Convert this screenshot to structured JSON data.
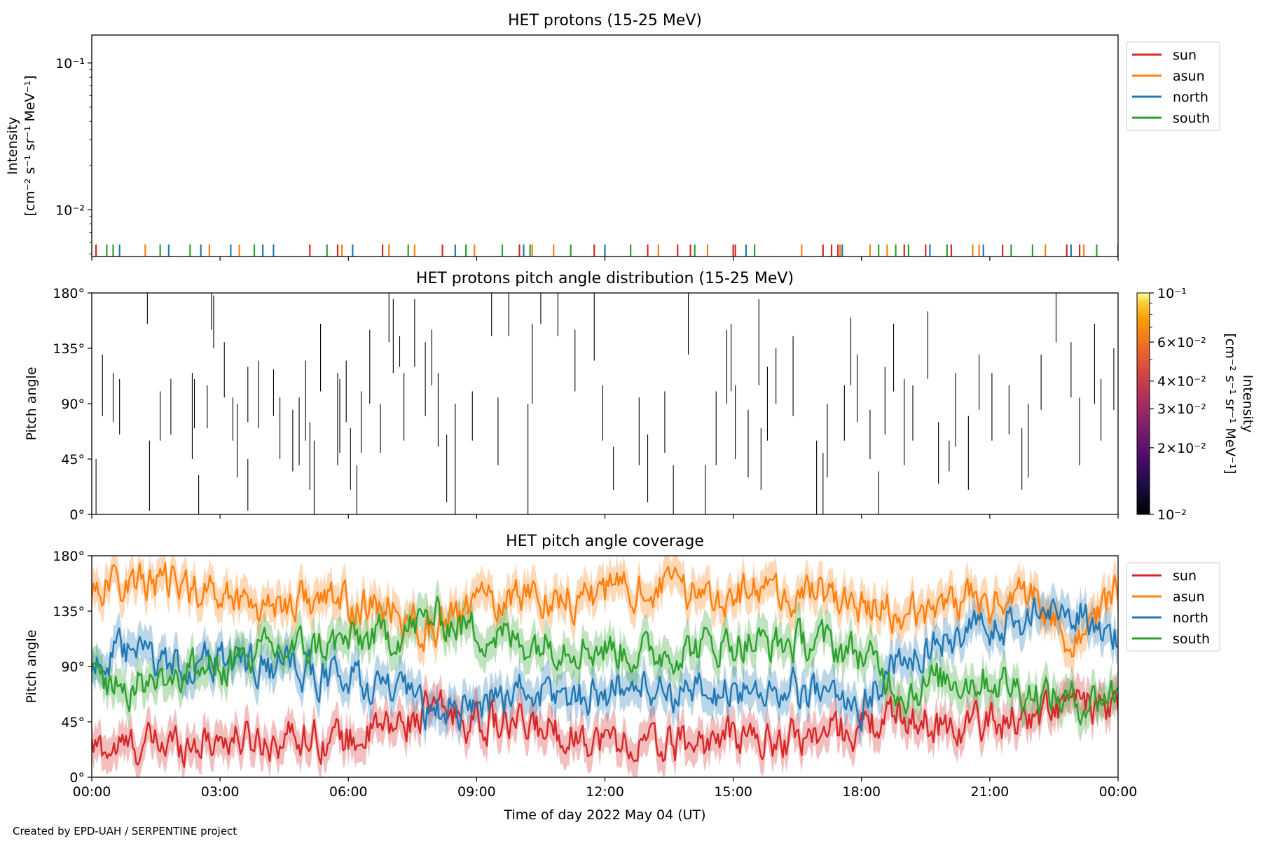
{
  "figure": {
    "credit": "Created by EPD-UAH / SERPENTINE project",
    "xlabel": "Time of day 2022 May 04 (UT)"
  },
  "colors": {
    "sun": "#d62728",
    "asun": "#ff7f0e",
    "north": "#1f77b4",
    "south": "#2ca02c"
  },
  "chart_data": [
    {
      "type": "line",
      "title": "HET protons (15-25 MeV)",
      "ylabel_lines": [
        "Intensity",
        "[cm⁻² s⁻¹ sr⁻¹ MeV⁻¹]"
      ],
      "yscale": "log",
      "ylim": [
        0.0048,
        0.155
      ],
      "yticks": [
        {
          "value": 0.1,
          "label": "10⁻¹"
        },
        {
          "value": 0.01,
          "label": "10⁻²"
        }
      ],
      "xlim_hours": [
        0,
        24
      ],
      "xtick_labels": [
        "00:00",
        "03:00",
        "06:00",
        "09:00",
        "12:00",
        "15:00",
        "18:00",
        "21:00",
        "00:00"
      ],
      "legend": {
        "placement": "outside-right",
        "entries": [
          "sun",
          "asun",
          "north",
          "south"
        ]
      },
      "series": [
        {
          "name": "sun",
          "color": "#d62728",
          "value": 0.0058,
          "times_hours": [
            0.1,
            5.1,
            5.75,
            6.8,
            8.2,
            10.0,
            11.75,
            13.0,
            13.7,
            14.0,
            15.0,
            15.05,
            17.1,
            17.3,
            17.45,
            19.0,
            19.5,
            20.1,
            21.3,
            22.8,
            23.1
          ]
        },
        {
          "name": "asun",
          "color": "#ff7f0e",
          "value": 0.0058,
          "times_hours": [
            1.25,
            2.75,
            3.45,
            5.85,
            6.95,
            7.55,
            8.95,
            10.3,
            10.8,
            13.25,
            14.4,
            16.6,
            17.5,
            18.2,
            18.6,
            20.6,
            20.75,
            22.3,
            23.2
          ]
        },
        {
          "name": "north",
          "color": "#1f77b4",
          "value": 0.0058,
          "times_hours": [
            0.65,
            1.8,
            2.55,
            3.25,
            4.0,
            4.25,
            6.1,
            8.5,
            10.1,
            12.0,
            15.3,
            17.55,
            19.6,
            20.85,
            22.9,
            24.0
          ]
        },
        {
          "name": "south",
          "color": "#2ca02c",
          "value": 0.0058,
          "times_hours": [
            0.35,
            0.5,
            1.6,
            2.3,
            3.8,
            5.5,
            7.4,
            8.75,
            9.6,
            10.25,
            11.2,
            12.6,
            14.1,
            15.5,
            18.4,
            18.8,
            19.1,
            20.0,
            21.5,
            22.0,
            23.5
          ]
        }
      ]
    },
    {
      "type": "heatmap",
      "title": "HET protons pitch angle distribution (15-25 MeV)",
      "ylabel": "Pitch angle",
      "ylim": [
        0,
        180
      ],
      "ytick_labels": [
        {
          "value": 0,
          "label": "0°"
        },
        {
          "value": 45,
          "label": "45°"
        },
        {
          "value": 90,
          "label": "90°"
        },
        {
          "value": 135,
          "label": "135°"
        },
        {
          "value": 180,
          "label": "180°"
        }
      ],
      "xlim_hours": [
        0,
        24
      ],
      "colorbar": {
        "label_lines": [
          "Intensity",
          "[cm⁻² s⁻¹ sr⁻¹ MeV⁻¹]"
        ],
        "scale": "log",
        "range": [
          0.01,
          0.1
        ],
        "colormap": "inferno",
        "ticks": [
          {
            "value": 0.1,
            "label": "10⁻¹"
          },
          {
            "value": 0.06,
            "label": "6×10⁻²"
          },
          {
            "value": 0.04,
            "label": "4×10⁻²"
          },
          {
            "value": 0.03,
            "label": "3×10⁻²"
          },
          {
            "value": 0.02,
            "label": "2×10⁻²"
          },
          {
            "value": 0.01,
            "label": "10⁻²"
          }
        ]
      },
      "segments": [
        [
          0.1,
          0,
          45
        ],
        [
          0.25,
          80,
          130
        ],
        [
          0.5,
          75,
          115
        ],
        [
          0.65,
          65,
          110
        ],
        [
          1.3,
          155,
          180
        ],
        [
          1.35,
          3,
          60
        ],
        [
          1.6,
          60,
          100
        ],
        [
          1.85,
          65,
          110
        ],
        [
          2.35,
          45,
          115
        ],
        [
          2.4,
          70,
          110
        ],
        [
          2.5,
          0,
          32
        ],
        [
          2.7,
          70,
          105
        ],
        [
          2.8,
          150,
          180
        ],
        [
          2.85,
          135,
          178
        ],
        [
          3.1,
          95,
          140
        ],
        [
          3.3,
          60,
          95
        ],
        [
          3.4,
          30,
          90
        ],
        [
          3.65,
          75,
          120
        ],
        [
          3.65,
          3,
          45
        ],
        [
          3.9,
          70,
          125
        ],
        [
          4.25,
          80,
          118
        ],
        [
          4.4,
          45,
          95
        ],
        [
          4.7,
          35,
          85
        ],
        [
          4.85,
          40,
          95
        ],
        [
          5.0,
          60,
          125
        ],
        [
          5.1,
          20,
          75
        ],
        [
          5.2,
          0,
          60
        ],
        [
          5.35,
          100,
          155
        ],
        [
          5.75,
          40,
          115
        ],
        [
          5.8,
          50,
          110
        ],
        [
          5.95,
          75,
          125
        ],
        [
          6.05,
          20,
          70
        ],
        [
          6.2,
          0,
          40
        ],
        [
          6.3,
          50,
          100
        ],
        [
          6.5,
          90,
          150
        ],
        [
          6.75,
          50,
          90
        ],
        [
          6.95,
          140,
          180
        ],
        [
          7.05,
          115,
          175
        ],
        [
          7.2,
          120,
          145
        ],
        [
          7.3,
          60,
          115
        ],
        [
          7.55,
          120,
          175
        ],
        [
          7.8,
          80,
          140
        ],
        [
          7.95,
          105,
          150
        ],
        [
          8.1,
          55,
          115
        ],
        [
          8.3,
          10,
          65
        ],
        [
          8.5,
          0,
          90
        ],
        [
          8.9,
          60,
          100
        ],
        [
          9.35,
          145,
          180
        ],
        [
          9.5,
          40,
          95
        ],
        [
          9.75,
          145,
          180
        ],
        [
          10.2,
          0,
          90
        ],
        [
          10.3,
          90,
          155
        ],
        [
          10.5,
          155,
          180
        ],
        [
          10.9,
          145,
          180
        ],
        [
          11.3,
          100,
          150
        ],
        [
          11.75,
          125,
          180
        ],
        [
          11.95,
          60,
          105
        ],
        [
          12.2,
          20,
          55
        ],
        [
          12.8,
          40,
          95
        ],
        [
          13.0,
          10,
          65
        ],
        [
          13.4,
          50,
          100
        ],
        [
          13.6,
          0,
          40
        ],
        [
          13.95,
          130,
          180
        ],
        [
          14.35,
          0,
          40
        ],
        [
          14.6,
          40,
          100
        ],
        [
          14.85,
          90,
          150
        ],
        [
          14.95,
          100,
          155
        ],
        [
          15.05,
          45,
          105
        ],
        [
          15.35,
          30,
          85
        ],
        [
          15.6,
          105,
          175
        ],
        [
          15.65,
          20,
          70
        ],
        [
          15.8,
          60,
          120
        ],
        [
          16.0,
          90,
          135
        ],
        [
          16.4,
          80,
          145
        ],
        [
          16.95,
          0,
          60
        ],
        [
          17.1,
          0,
          50
        ],
        [
          17.2,
          30,
          90
        ],
        [
          17.6,
          60,
          105
        ],
        [
          17.75,
          105,
          160
        ],
        [
          17.9,
          75,
          130
        ],
        [
          18.2,
          45,
          85
        ],
        [
          18.4,
          0,
          35
        ],
        [
          18.55,
          65,
          120
        ],
        [
          18.75,
          100,
          155
        ],
        [
          19.0,
          40,
          110
        ],
        [
          19.2,
          60,
          105
        ],
        [
          19.55,
          110,
          165
        ],
        [
          19.8,
          25,
          75
        ],
        [
          20.05,
          35,
          60
        ],
        [
          20.2,
          55,
          115
        ],
        [
          20.5,
          20,
          80
        ],
        [
          20.75,
          85,
          130
        ],
        [
          21.05,
          60,
          115
        ],
        [
          21.45,
          65,
          105
        ],
        [
          21.75,
          20,
          70
        ],
        [
          21.9,
          30,
          90
        ],
        [
          22.2,
          85,
          130
        ],
        [
          22.55,
          140,
          180
        ],
        [
          22.9,
          95,
          140
        ],
        [
          23.1,
          40,
          95
        ],
        [
          23.45,
          90,
          155
        ],
        [
          23.6,
          60,
          110
        ],
        [
          23.9,
          85,
          135
        ]
      ]
    },
    {
      "type": "line",
      "title": "HET pitch angle coverage",
      "ylabel": "Pitch angle",
      "ylim": [
        0,
        180
      ],
      "ytick_labels": [
        {
          "value": 0,
          "label": "0°"
        },
        {
          "value": 45,
          "label": "45°"
        },
        {
          "value": 90,
          "label": "90°"
        },
        {
          "value": 135,
          "label": "135°"
        },
        {
          "value": 180,
          "label": "180°"
        }
      ],
      "xlim_hours": [
        0,
        24
      ],
      "xtick_labels": [
        "00:00",
        "03:00",
        "06:00",
        "09:00",
        "12:00",
        "15:00",
        "18:00",
        "21:00",
        "00:00"
      ],
      "legend": {
        "placement": "outside-right",
        "entries": [
          "sun",
          "asun",
          "north",
          "south"
        ]
      },
      "band_halfwidth_deg": 14,
      "series": [
        {
          "name": "sun",
          "color": "#d62728",
          "times_hours": [
            0,
            1,
            2,
            3,
            4,
            5,
            6,
            7,
            8,
            9,
            10,
            11,
            12,
            13,
            14,
            15,
            16,
            17,
            18,
            19,
            20,
            21,
            22,
            23,
            24
          ],
          "values": [
            22,
            25,
            28,
            32,
            30,
            35,
            30,
            40,
            55,
            45,
            40,
            38,
            30,
            25,
            28,
            32,
            30,
            35,
            40,
            50,
            40,
            45,
            50,
            60,
            50
          ]
        },
        {
          "name": "asun",
          "color": "#ff7f0e",
          "times_hours": [
            0,
            1,
            2,
            3,
            4,
            5,
            6,
            7,
            8,
            9,
            10,
            11,
            12,
            13,
            14,
            15,
            16,
            17,
            18,
            19,
            20,
            21,
            22,
            23,
            24
          ],
          "values": [
            155,
            160,
            155,
            150,
            140,
            145,
            140,
            135,
            120,
            140,
            150,
            145,
            150,
            155,
            150,
            150,
            148,
            150,
            140,
            130,
            145,
            140,
            150,
            110,
            150
          ]
        },
        {
          "name": "north",
          "color": "#1f77b4",
          "times_hours": [
            0,
            1,
            2,
            3,
            4,
            5,
            6,
            7,
            8,
            9,
            10,
            11,
            12,
            13,
            14,
            15,
            16,
            17,
            18,
            19,
            20,
            21,
            22,
            23,
            24
          ],
          "values": [
            95,
            100,
            90,
            95,
            90,
            85,
            80,
            70,
            50,
            60,
            70,
            65,
            70,
            75,
            65,
            70,
            72,
            65,
            60,
            100,
            110,
            120,
            130,
            140,
            110
          ]
        },
        {
          "name": "south",
          "color": "#2ca02c",
          "times_hours": [
            0,
            1,
            2,
            3,
            4,
            5,
            6,
            7,
            8,
            9,
            10,
            11,
            12,
            13,
            14,
            15,
            16,
            17,
            18,
            19,
            20,
            21,
            22,
            23,
            24
          ],
          "values": [
            80,
            75,
            85,
            90,
            100,
            105,
            110,
            115,
            130,
            120,
            110,
            110,
            105,
            100,
            105,
            110,
            108,
            110,
            100,
            70,
            80,
            80,
            70,
            60,
            70
          ]
        }
      ]
    }
  ]
}
